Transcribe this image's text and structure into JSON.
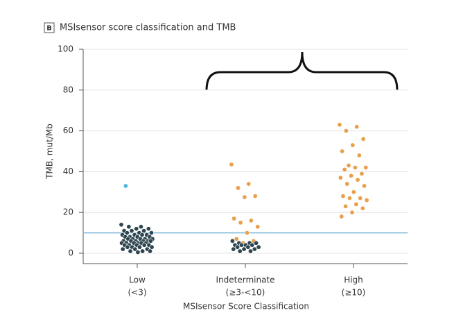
{
  "chart_data": {
    "type": "strip",
    "panel": "B",
    "title": "MSIsensor score classification and TMB",
    "y_label": "TMB, mut/Mb",
    "x_label": "MSIsensor Score Classification",
    "ylim": [
      0,
      100
    ],
    "yticks": [
      0,
      20,
      40,
      60,
      80,
      100
    ],
    "grid": true,
    "reference_line": {
      "value": 10,
      "color": "#7fb8d6"
    },
    "groups": [
      {
        "label": "Low",
        "sublabel": "(<3)",
        "points": [
          {
            "color": "#2f4650",
            "values": [
              14,
              13,
              13,
              12,
              12,
              11,
              11,
              11,
              10,
              10,
              10,
              9,
              9,
              9,
              9,
              8,
              8,
              8,
              8,
              7,
              7,
              7,
              7,
              7,
              6,
              6,
              6,
              6,
              6,
              6,
              5,
              5,
              5,
              5,
              5,
              5,
              4,
              4,
              4,
              4,
              4,
              3,
              3,
              3,
              3,
              2,
              2,
              2,
              1,
              1,
              1,
              0.5
            ]
          },
          {
            "color": "#4fb3e0",
            "values": [
              33
            ]
          }
        ]
      },
      {
        "label": "Indeterminate",
        "sublabel": "(≥3-<10)",
        "points": [
          {
            "color": "#e8a04c",
            "values": [
              43.5,
              34,
              32,
              28,
              27.5,
              17,
              16,
              15,
              13,
              10,
              7,
              6,
              5
            ]
          },
          {
            "color": "#2f4650",
            "values": [
              6,
              5,
              5,
              5,
              4,
              4,
              4,
              4,
              3,
              3,
              3,
              2,
              2,
              2,
              1,
              1
            ]
          }
        ]
      },
      {
        "label": "High",
        "sublabel": "(≥10)",
        "points": [
          {
            "color": "#e8a04c",
            "values": [
              63,
              62,
              60,
              56,
              53,
              50,
              48,
              43,
              42,
              42,
              41,
              39,
              38,
              37,
              36,
              34,
              33,
              30,
              28,
              27,
              27,
              26,
              24,
              23,
              22,
              20,
              18
            ]
          }
        ]
      }
    ]
  }
}
